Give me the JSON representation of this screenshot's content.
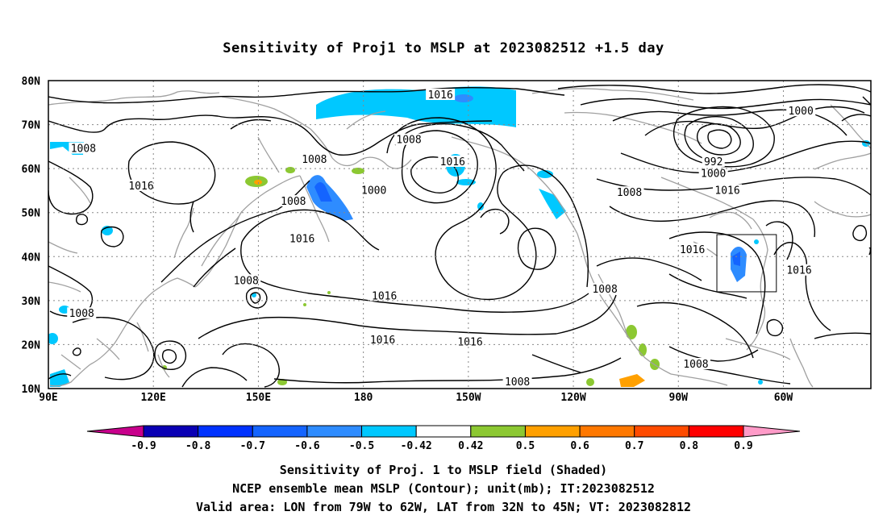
{
  "title": "Sensitivity of Proj1 to MSLP at 2023082512 +1.5 day",
  "map": {
    "lat_labels": [
      "80N",
      "70N",
      "60N",
      "50N",
      "40N",
      "30N",
      "20N",
      "10N"
    ],
    "lon_labels": [
      "90E",
      "120E",
      "150E",
      "180",
      "150W",
      "120W",
      "90W",
      "60W"
    ],
    "contour_labels": [
      {
        "text": "1016",
        "lon": -158,
        "lat": 76.7
      },
      {
        "text": "1008",
        "lon": -167,
        "lat": 66.5
      },
      {
        "text": "1000",
        "lon": -55,
        "lat": 73.0
      },
      {
        "text": "992",
        "lon": -80,
        "lat": 61.5
      },
      {
        "text": "1000",
        "lon": -80,
        "lat": 58.8
      },
      {
        "text": "1008",
        "lon": 100,
        "lat": 64.5
      },
      {
        "text": "1016",
        "lon": 116.5,
        "lat": 56.0
      },
      {
        "text": "1008",
        "lon": 166,
        "lat": 62.0
      },
      {
        "text": "1008",
        "lon": 160,
        "lat": 52.5
      },
      {
        "text": "1016",
        "lon": 162.5,
        "lat": 44.0
      },
      {
        "text": "1000",
        "lon": -177,
        "lat": 55.0
      },
      {
        "text": "1016",
        "lon": -154.5,
        "lat": 61.5
      },
      {
        "text": "1008",
        "lon": -104,
        "lat": 54.5
      },
      {
        "text": "1016",
        "lon": -76,
        "lat": 55.0
      },
      {
        "text": "1016",
        "lon": -86,
        "lat": 41.5
      },
      {
        "text": "1016",
        "lon": -55.5,
        "lat": 36.8
      },
      {
        "text": "1008",
        "lon": 146.5,
        "lat": 34.5
      },
      {
        "text": "1008",
        "lon": 99.5,
        "lat": 27.0
      },
      {
        "text": "1016",
        "lon": -174,
        "lat": 31.0
      },
      {
        "text": "1016",
        "lon": -174.5,
        "lat": 21.0
      },
      {
        "text": "1016",
        "lon": -149.5,
        "lat": 20.5
      },
      {
        "text": "1008",
        "lon": -111,
        "lat": 32.5
      },
      {
        "text": "1008",
        "lon": -85,
        "lat": 15.5
      },
      {
        "text": "1008",
        "lon": -136,
        "lat": 11.5
      }
    ],
    "valid_box": {
      "lon_min": -79,
      "lon_max": -62,
      "lat_min": 32,
      "lat_max": 45
    }
  },
  "colorbar": {
    "labels": [
      "-0.9",
      "-0.8",
      "-0.7",
      "-0.6",
      "-0.5",
      "-0.42",
      "0.42",
      "0.5",
      "0.6",
      "0.7",
      "0.8",
      "0.9"
    ],
    "colors": [
      "#0a00b4",
      "#0032ff",
      "#1464ff",
      "#2e8cff",
      "#00c8ff",
      "#ffffff",
      "#8cc832",
      "#ffa000",
      "#ff7800",
      "#ff4b00",
      "#ff0000"
    ],
    "left_arrow_color": "#c8008c",
    "right_arrow_color": "#ff9bc8"
  },
  "captions": [
    "Sensitivity of Proj. 1 to MSLP field (Shaded)",
    "NCEP ensemble mean MSLP (Contour); unit(mb); IT:2023082512",
    "Valid area: LON from 79W to 62W, LAT from 32N to 45N; VT: 2023082812"
  ]
}
